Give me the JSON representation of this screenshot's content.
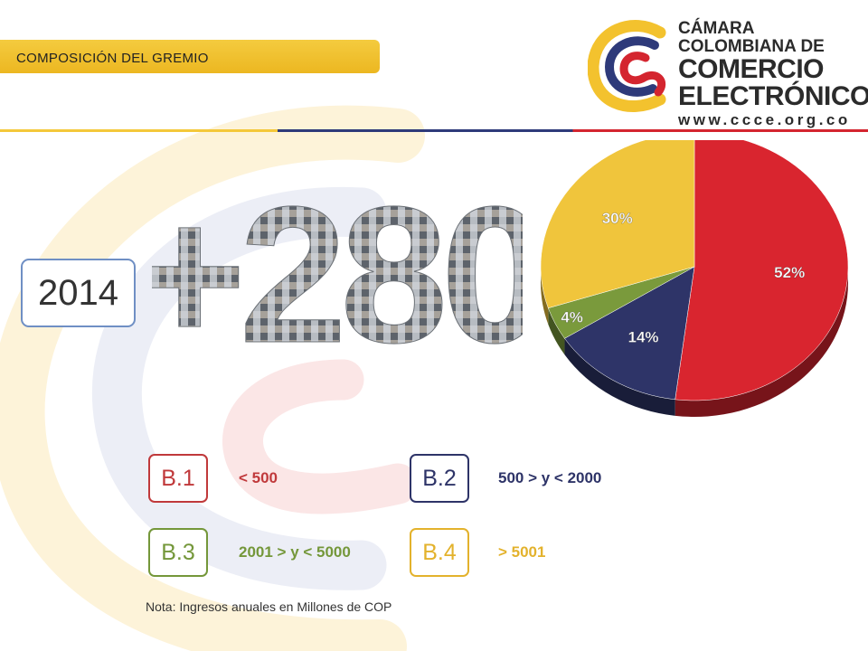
{
  "header": {
    "title": "COMPOSICIÓN DEL GREMIO"
  },
  "logo": {
    "line1": "CÁMARA",
    "line2": "COLOMBIANA DE",
    "line3": "COMERCIO",
    "line4": "ELECTRÓNICO",
    "url": "www.ccce.org.co"
  },
  "year_label": "2014",
  "members_count": "+280",
  "colors": {
    "red": "#d9252f",
    "navy": "#2e3468",
    "green": "#7a9a3c",
    "yellow": "#f0c53c"
  },
  "chart_data": {
    "type": "pie",
    "slices": [
      {
        "label": "B.1",
        "value": 52,
        "text": "52%",
        "color": "#d9252f"
      },
      {
        "label": "B.2",
        "value": 14,
        "text": "14%",
        "color": "#2e3468"
      },
      {
        "label": "B.3",
        "value": 4,
        "text": "4%",
        "color": "#7a9a3c"
      },
      {
        "label": "B.4",
        "value": 30,
        "text": "30%",
        "color": "#f0c53c"
      }
    ]
  },
  "legend": [
    {
      "badge": "B.1",
      "range": "< 500",
      "color": "#c0393b"
    },
    {
      "badge": "B.2",
      "range": "500 > y < 2000",
      "color": "#2e3468"
    },
    {
      "badge": "B.3",
      "range": "2001 > y < 5000",
      "color": "#74973a"
    },
    {
      "badge": "B.4",
      "range": "> 5001",
      "color": "#e3b22c"
    }
  ],
  "note": "Nota: Ingresos anuales en Millones de COP"
}
